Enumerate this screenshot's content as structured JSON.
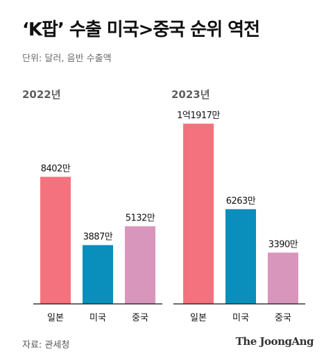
{
  "title": "‘K팝’ 수출 미국>중국 순위 역전",
  "unit_label": "단위: 달러, 음반 수출액",
  "source": "자료: 관세청",
  "brand": "The JoongAng",
  "colors": {
    "japan": "#f4727d",
    "usa": "#0a8ebc",
    "china": "#d996bc",
    "panel_title": "#5f5f5f",
    "axis": "#111111"
  },
  "chart_data": [
    {
      "type": "bar",
      "title": "2022년",
      "categories": [
        "일본",
        "미국",
        "중국"
      ],
      "values": [
        84020000,
        38870000,
        51320000
      ],
      "value_labels": [
        "8402만",
        "3887만",
        "5132만"
      ],
      "ylim": [
        0,
        120000000
      ]
    },
    {
      "type": "bar",
      "title": "2023년",
      "categories": [
        "일본",
        "미국",
        "중국"
      ],
      "values": [
        119170000,
        62630000,
        33900000
      ],
      "value_labels": [
        "1억1917만",
        "6263만",
        "3390만"
      ],
      "ylim": [
        0,
        120000000
      ]
    }
  ]
}
